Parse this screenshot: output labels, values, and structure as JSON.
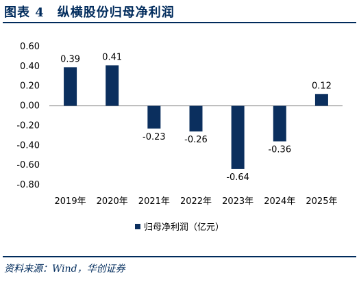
{
  "header": {
    "title": "图表 4　纵横股份归母净利润"
  },
  "footer": {
    "source": "资料来源：Wind，华创证券"
  },
  "chart_data": {
    "type": "bar",
    "categories": [
      "2019年",
      "2020年",
      "2021年",
      "2022年",
      "2023年",
      "2024年",
      "2025年"
    ],
    "series": [
      {
        "name": "归母净利润（亿元）",
        "values": [
          0.39,
          0.41,
          -0.23,
          -0.26,
          -0.64,
          -0.36,
          0.12
        ],
        "labels": [
          "0.39",
          "0.41",
          "-0.23",
          "-0.26",
          "-0.64",
          "-0.36",
          "0.12"
        ]
      }
    ],
    "yticks": [
      0.6,
      0.4,
      0.2,
      0.0,
      -0.2,
      -0.4,
      -0.6,
      -0.8
    ],
    "ytick_labels": [
      "0.60",
      "0.40",
      "0.20",
      "0.00",
      "-0.20",
      "-0.40",
      "-0.60",
      "-0.80"
    ],
    "ylim": [
      -0.8,
      0.6
    ],
    "grid": false,
    "legend_position": "bottom-center",
    "bar_color": "#0B2F5E",
    "axis_color": "#8C8C8C"
  }
}
